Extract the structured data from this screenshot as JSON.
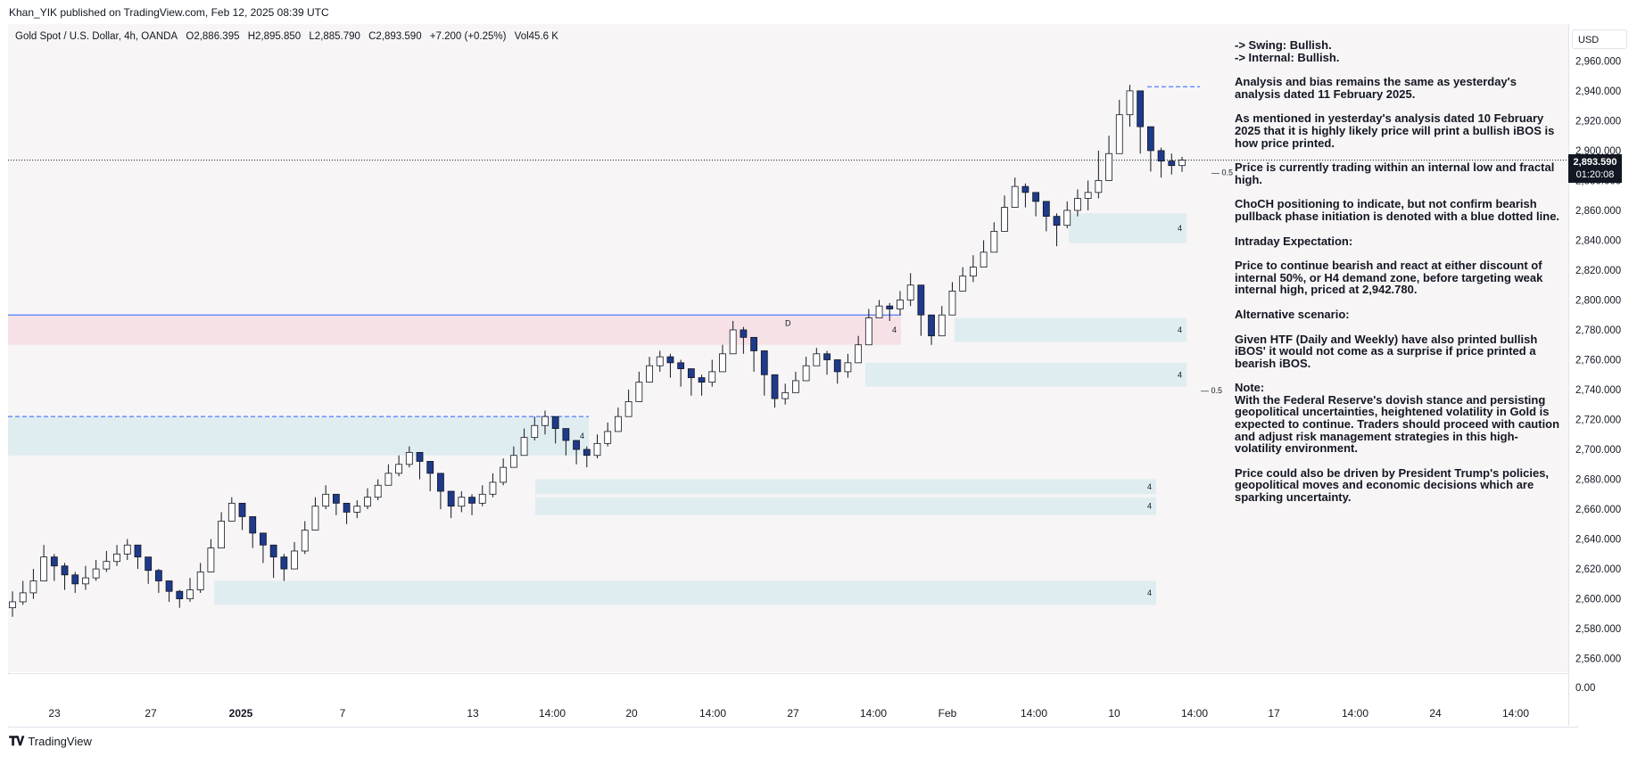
{
  "header": {
    "publisher": "Khan_YIK published on TradingView.com, Feb 12, 2025 08:39 UTC"
  },
  "symbol_info": {
    "name": "Gold Spot / U.S. Dollar, 4h, OANDA",
    "open": "O2,886.395",
    "high": "H2,895.850",
    "low": "L2,885.790",
    "close": "C2,893.590",
    "change": "+7.200 (+0.25%)",
    "volume": "Vol45.6 K"
  },
  "price_axis": {
    "currency": "USD",
    "last_price": "2,893.590",
    "countdown": "01:20:08",
    "ticks": [
      "2,960.000",
      "2,940.000",
      "2,920.000",
      "2,900.000",
      "2,880.000",
      "2,860.000",
      "2,840.000",
      "2,820.000",
      "2,800.000",
      "2,780.000",
      "2,760.000",
      "2,740.000",
      "2,720.000",
      "2,700.000",
      "2,680.000",
      "2,660.000",
      "2,640.000",
      "2,620.000",
      "2,600.000",
      "2,580.000",
      "2,560.000"
    ],
    "volume_tick": "0.00"
  },
  "time_axis": {
    "labels": [
      "23",
      "27",
      "2025",
      "7",
      "13",
      "14:00",
      "20",
      "14:00",
      "27",
      "14:00",
      "Feb",
      "14:00",
      "10",
      "14:00",
      "17",
      "14:00",
      "24",
      "14:00"
    ]
  },
  "annotations": {
    "fib_labels": [
      "0.5",
      "0.5"
    ],
    "zone_number": "4",
    "choch_marker": "D"
  },
  "analysis": [
    "-> Swing:  Bullish.",
    "-> Internal:  Bullish.",
    "Analysis and bias remains the same as yesterday's analysis dated 11 February 2025.",
    "As mentioned in yesterday's analysis dated 10 February 2025 that it is highly likely price will print a bullish iBOS is how price printed.",
    "Price is currently trading within an internal low and fractal high.",
    "ChoCH positioning to indicate, but not confirm bearish pullback phase initiation is denoted with a blue dotted line.",
    "Intraday Expectation:",
    "Price to continue bearish and react at either discount of internal 50%, or H4 demand zone, before targeting weak internal high, priced at 2,942.780.",
    "Alternative scenario:",
    "Given HTF (Daily and Weekly) have also printed bullish iBOS' it would not come as a surprise if price printed a bearish iBOS.",
    "Note:",
    "With the Federal Reserve's dovish stance and persisting geopolitical uncertainties, heightened volatility in Gold is expected to continue. Traders should proceed with caution and adjust risk management strategies in this high-volatility environment.",
    "Price could also be driven by President Trump's policies, geopolitical moves and economic decisions which are sparking uncertainty."
  ],
  "footer": {
    "brand": "TradingView"
  },
  "colors": {
    "bull": "#ffffff",
    "bear": "#1e3a8a",
    "wick": "#131722",
    "demand_zone": "#dcebee",
    "supply_zone": "#f5dde3",
    "level_blue": "#2962ff",
    "level_red": "#e53935",
    "price_line": "#131722"
  },
  "chart_data": {
    "type": "candlestick",
    "title": "",
    "symbol": "Gold Spot / U.S. Dollar",
    "timeframe": "4h",
    "ylim": [
      2550,
      2970
    ],
    "y_ticks": [
      2960,
      2940,
      2920,
      2900,
      2880,
      2860,
      2840,
      2820,
      2800,
      2780,
      2760,
      2740,
      2720,
      2700,
      2680,
      2660,
      2640,
      2620,
      2600,
      2580,
      2560
    ],
    "x_labels": [
      "23",
      "27",
      "2025",
      "7",
      "13",
      "14:00",
      "20",
      "14:00",
      "27",
      "14:00",
      "Feb",
      "14:00",
      "10",
      "14:00",
      "17",
      "14:00",
      "24",
      "14:00"
    ],
    "series": [
      {
        "name": "close",
        "values": [
          2598,
          2604,
          2612,
          2628,
          2622,
          2616,
          2610,
          2614,
          2620,
          2625,
          2630,
          2636,
          2628,
          2619,
          2612,
          2605,
          2600,
          2606,
          2618,
          2634,
          2652,
          2664,
          2655,
          2644,
          2636,
          2628,
          2620,
          2632,
          2646,
          2662,
          2670,
          2664,
          2658,
          2662,
          2668,
          2676,
          2684,
          2690,
          2698,
          2692,
          2684,
          2672,
          2662,
          2668,
          2664,
          2670,
          2678,
          2688,
          2696,
          2708,
          2716,
          2722,
          2714,
          2706,
          2700,
          2696,
          2704,
          2712,
          2722,
          2732,
          2745,
          2756,
          2762,
          2758,
          2754,
          2748,
          2745,
          2752,
          2764,
          2780,
          2775,
          2766,
          2750,
          2734,
          2738,
          2746,
          2756,
          2764,
          2760,
          2752,
          2758,
          2770,
          2788,
          2796,
          2794,
          2800,
          2810,
          2790,
          2776,
          2790,
          2806,
          2816,
          2822,
          2832,
          2846,
          2862,
          2876,
          2872,
          2866,
          2856,
          2850,
          2860,
          2868,
          2872,
          2880,
          2898,
          2924,
          2940,
          2916,
          2900,
          2893,
          2890,
          2893.59
        ]
      },
      {
        "name": "high",
        "values": [
          2605,
          2612,
          2620,
          2636,
          2630,
          2624,
          2618,
          2622,
          2626,
          2632,
          2636,
          2640,
          2636,
          2628,
          2620,
          2612,
          2606,
          2614,
          2624,
          2640,
          2658,
          2668,
          2664,
          2650,
          2642,
          2636,
          2630,
          2638,
          2652,
          2668,
          2676,
          2670,
          2664,
          2666,
          2674,
          2680,
          2690,
          2696,
          2702,
          2698,
          2692,
          2680,
          2670,
          2672,
          2670,
          2676,
          2684,
          2694,
          2702,
          2714,
          2722,
          2726,
          2720,
          2714,
          2706,
          2702,
          2710,
          2718,
          2728,
          2740,
          2752,
          2762,
          2766,
          2764,
          2760,
          2754,
          2750,
          2760,
          2770,
          2786,
          2782,
          2774,
          2758,
          2742,
          2744,
          2752,
          2762,
          2768,
          2766,
          2760,
          2764,
          2776,
          2794,
          2800,
          2798,
          2806,
          2818,
          2808,
          2790,
          2796,
          2812,
          2822,
          2830,
          2840,
          2852,
          2870,
          2882,
          2878,
          2872,
          2862,
          2858,
          2866,
          2874,
          2880,
          2900,
          2910,
          2934,
          2944,
          2930,
          2908,
          2902,
          2898,
          2895.85
        ]
      },
      {
        "name": "low",
        "values": [
          2588,
          2596,
          2600,
          2616,
          2612,
          2606,
          2604,
          2606,
          2612,
          2618,
          2622,
          2626,
          2620,
          2610,
          2604,
          2598,
          2594,
          2598,
          2604,
          2618,
          2634,
          2652,
          2646,
          2634,
          2624,
          2614,
          2612,
          2620,
          2630,
          2646,
          2660,
          2656,
          2650,
          2654,
          2660,
          2666,
          2676,
          2682,
          2688,
          2680,
          2672,
          2660,
          2654,
          2658,
          2656,
          2662,
          2668,
          2676,
          2688,
          2698,
          2706,
          2710,
          2704,
          2696,
          2690,
          2688,
          2694,
          2702,
          2712,
          2722,
          2734,
          2746,
          2752,
          2748,
          2742,
          2736,
          2736,
          2742,
          2752,
          2770,
          2764,
          2752,
          2736,
          2728,
          2730,
          2738,
          2746,
          2756,
          2750,
          2744,
          2748,
          2758,
          2776,
          2788,
          2786,
          2790,
          2796,
          2776,
          2770,
          2778,
          2792,
          2806,
          2812,
          2822,
          2836,
          2850,
          2864,
          2862,
          2856,
          2846,
          2836,
          2848,
          2856,
          2860,
          2868,
          2888,
          2910,
          2916,
          2898,
          2886,
          2882,
          2884,
          2885.79
        ]
      }
    ],
    "levels": [
      {
        "name": "weak internal high",
        "value": 2942.78
      },
      {
        "name": "current price",
        "value": 2893.59
      }
    ],
    "zones": [
      {
        "type": "demand",
        "from": 2838,
        "to": 2858
      },
      {
        "type": "demand",
        "from": 2772,
        "to": 2788
      },
      {
        "type": "demand",
        "from": 2742,
        "to": 2758
      },
      {
        "type": "demand",
        "from": 2670,
        "to": 2680
      },
      {
        "type": "demand",
        "from": 2656,
        "to": 2668
      },
      {
        "type": "demand",
        "from": 2596,
        "to": 2612
      },
      {
        "type": "supply",
        "from": 2770,
        "to": 2790
      },
      {
        "type": "demand",
        "from": 2696,
        "to": 2722
      }
    ],
    "grid": false,
    "legend": "none"
  }
}
